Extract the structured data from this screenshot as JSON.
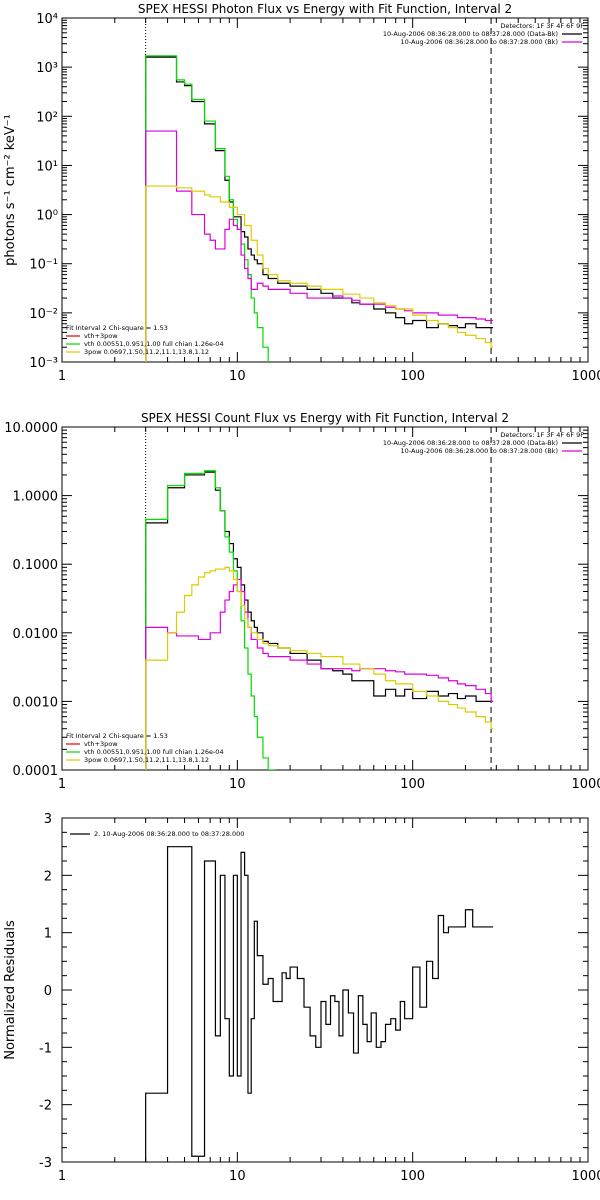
{
  "chart_data": [
    {
      "type": "line",
      "title": "SPEX HESSI Photon Flux vs Energy with Fit Function, Interval 2",
      "ylabel": "photons s⁻¹ cm⁻² keV⁻¹",
      "xlabel": "",
      "xscale": "log",
      "yscale": "log",
      "xlim": [
        1,
        1000
      ],
      "ylim": [
        0.001,
        10000
      ],
      "x_tick_labels": [
        "1",
        "10",
        "100",
        "1000"
      ],
      "y_tick_labels": [
        "10⁻³",
        "10⁻²",
        "10⁻¹",
        "10⁰",
        "10¹",
        "10²",
        "10³",
        "10⁴"
      ],
      "vlines": [
        {
          "x": 3,
          "style": "dotted"
        },
        {
          "x": 280,
          "style": "dashed"
        }
      ],
      "legend_top": [
        "Detectors: 1F 3F 4F 6F 9F",
        "10-Aug-2006 08:36:28.000 to 08:37:28.000 (Data-Bk)",
        "10-Aug-2006 08:36:28.000 to 08:37:28.000 (Bk)"
      ],
      "legend_bottom": [
        "Fit Interval 2   Chi-square = 1.53",
        "vth+3pow",
        "vth 0.00551,0.951,1.00  full chian 1.26e-04",
        "3pow 0.0697,1.50,11.2,11.1,13.8,1.12"
      ],
      "series": [
        {
          "color": "#000000",
          "x": [
            3,
            3.5,
            4,
            4.5,
            5,
            5.5,
            6,
            6.5,
            7,
            7.5,
            8,
            8.5,
            9,
            9.5,
            10,
            10.5,
            11,
            11.5,
            12,
            12.5,
            13,
            14,
            15,
            17,
            20,
            25,
            30,
            35,
            40,
            45,
            50,
            60,
            70,
            80,
            90,
            100,
            120,
            140,
            160,
            180,
            200,
            230,
            260,
            280
          ],
          "y": [
            1600,
            1600,
            1600,
            500,
            420,
            200,
            200,
            70,
            70,
            20,
            20,
            5,
            1.8,
            0.9,
            0.9,
            0.45,
            0.35,
            0.2,
            0.15,
            0.12,
            0.1,
            0.06,
            0.05,
            0.04,
            0.035,
            0.03,
            0.025,
            0.02,
            0.02,
            0.016,
            0.015,
            0.012,
            0.01,
            0.008,
            0.006,
            0.007,
            0.005,
            0.006,
            0.0055,
            0.005,
            0.006,
            0.005,
            0.005,
            0.005
          ]
        },
        {
          "color": "#00dd00",
          "x": [
            3,
            3.5,
            4,
            4.5,
            5,
            5.5,
            6,
            6.5,
            7,
            7.5,
            8,
            8.5,
            9,
            9.5,
            10,
            10.5,
            11,
            11.5,
            12,
            12.5,
            13,
            14,
            15
          ],
          "y": [
            1700,
            1700,
            1700,
            550,
            450,
            220,
            220,
            80,
            80,
            22,
            22,
            6,
            2,
            0.8,
            0.5,
            0.25,
            0.12,
            0.06,
            0.02,
            0.01,
            0.005,
            0.002,
            0.0008
          ]
        },
        {
          "color": "#dd00dd",
          "x": [
            3,
            3.5,
            4,
            4.5,
            5,
            5.5,
            6,
            6.5,
            7,
            7.5,
            8,
            8.5,
            9,
            9.5,
            10,
            10.5,
            11,
            11.5,
            12,
            13,
            14,
            15,
            17,
            20,
            25,
            30,
            35,
            40,
            45,
            50,
            60,
            70,
            80,
            90,
            100,
            120,
            140,
            160,
            180,
            200,
            230,
            260,
            280
          ],
          "y": [
            50,
            50,
            50,
            3,
            3,
            1,
            1,
            0.4,
            0.3,
            0.2,
            0.2,
            0.5,
            0.8,
            0.6,
            0.5,
            0.15,
            0.08,
            0.05,
            0.03,
            0.04,
            0.035,
            0.03,
            0.03,
            0.025,
            0.02,
            0.02,
            0.022,
            0.02,
            0.018,
            0.015,
            0.015,
            0.013,
            0.012,
            0.011,
            0.01,
            0.01,
            0.009,
            0.009,
            0.008,
            0.008,
            0.0075,
            0.007,
            0.007
          ]
        },
        {
          "color": "#ddcc00",
          "x": [
            3,
            3.5,
            4,
            4.5,
            5,
            5.5,
            6,
            6.5,
            7,
            8,
            9,
            10,
            11,
            12,
            13,
            14,
            15,
            17,
            20,
            25,
            30,
            40,
            50,
            60,
            70,
            80,
            100,
            120,
            140,
            160,
            180,
            200,
            230,
            260,
            280
          ],
          "y": [
            3.8,
            3.8,
            3.8,
            3.5,
            3.5,
            3,
            3,
            2.5,
            2.3,
            1.8,
            1.4,
            1.0,
            0.6,
            0.3,
            0.15,
            0.08,
            0.06,
            0.045,
            0.04,
            0.035,
            0.03,
            0.024,
            0.02,
            0.016,
            0.014,
            0.012,
            0.009,
            0.007,
            0.006,
            0.005,
            0.004,
            0.0035,
            0.003,
            0.0025,
            0.002
          ]
        }
      ]
    },
    {
      "type": "line",
      "title": "SPEX HESSI Count Flux vs Energy with Fit Function, Interval 2",
      "ylabel": "",
      "xlabel": "",
      "xscale": "log",
      "yscale": "log",
      "xlim": [
        1,
        1000
      ],
      "ylim": [
        0.0001,
        10
      ],
      "x_tick_labels": [
        "1",
        "10",
        "100",
        "1000"
      ],
      "y_tick_labels": [
        "0.0001",
        "0.0010",
        "0.0100",
        "0.1000",
        "1.0000",
        "10.0000"
      ],
      "vlines": [
        {
          "x": 3,
          "style": "dotted"
        },
        {
          "x": 280,
          "style": "dashed"
        }
      ],
      "legend_top": [
        "Detectors: 1F 3F 4F 6F 9F",
        "10-Aug-2006 08:36:28.000 to 08:37:28.000 (Data-Bk)",
        "10-Aug-2006 08:36:28.000 to 08:37:28.000 (Bk)"
      ],
      "legend_bottom": [
        "Fit Interval 2   Chi-square = 1.53",
        "vth+3pow",
        "vth 0.00551,0.951,1.00  full chian 1.26e-04",
        "3pow 0.0697,1.50,11.2,11.1,13.8,1.12"
      ],
      "series": [
        {
          "color": "#000000",
          "x": [
            3,
            3.5,
            4,
            4.5,
            5,
            5.5,
            6,
            6.5,
            7,
            7.5,
            8,
            8.5,
            9,
            9.5,
            10,
            10.5,
            11,
            11.5,
            12,
            12.5,
            13,
            14,
            15,
            17,
            20,
            25,
            30,
            35,
            40,
            45,
            50,
            60,
            70,
            80,
            90,
            100,
            120,
            140,
            160,
            180,
            200,
            230,
            260,
            280
          ],
          "y": [
            0.4,
            0.4,
            1.3,
            1.3,
            2.0,
            2.0,
            2.0,
            2.2,
            2.2,
            1.2,
            0.6,
            0.3,
            0.2,
            0.12,
            0.09,
            0.05,
            0.03,
            0.02,
            0.015,
            0.012,
            0.01,
            0.0075,
            0.007,
            0.006,
            0.005,
            0.004,
            0.003,
            0.0028,
            0.0025,
            0.002,
            0.002,
            0.0012,
            0.0015,
            0.0012,
            0.0015,
            0.0011,
            0.0014,
            0.0012,
            0.0013,
            0.0011,
            0.0012,
            0.001,
            0.001,
            0.001
          ]
        },
        {
          "color": "#00dd00",
          "x": [
            3,
            3.5,
            4,
            4.5,
            5,
            5.5,
            6,
            6.5,
            7,
            7.5,
            8,
            8.5,
            9,
            9.5,
            10,
            10.5,
            11,
            11.5,
            12,
            12.5,
            13,
            14,
            15,
            16
          ],
          "y": [
            0.45,
            0.45,
            1.4,
            1.4,
            2.1,
            2.1,
            2.1,
            2.3,
            2.3,
            1.3,
            0.6,
            0.25,
            0.15,
            0.08,
            0.04,
            0.015,
            0.006,
            0.0025,
            0.0012,
            0.0006,
            0.0003,
            0.00015,
            0.0001,
            0.0001
          ]
        },
        {
          "color": "#dd00dd",
          "x": [
            3,
            3.5,
            4,
            4.5,
            5,
            6,
            7,
            8,
            8.5,
            9,
            9.5,
            10,
            10.5,
            11,
            11.5,
            12,
            13,
            14,
            15,
            17,
            20,
            25,
            30,
            35,
            40,
            45,
            50,
            60,
            70,
            80,
            90,
            100,
            120,
            140,
            160,
            180,
            200,
            230,
            260,
            280
          ],
          "y": [
            0.012,
            0.012,
            0.01,
            0.009,
            0.009,
            0.008,
            0.01,
            0.02,
            0.03,
            0.04,
            0.05,
            0.06,
            0.04,
            0.02,
            0.012,
            0.008,
            0.006,
            0.005,
            0.0045,
            0.0045,
            0.004,
            0.0035,
            0.003,
            0.003,
            0.003,
            0.0028,
            0.003,
            0.003,
            0.0028,
            0.0027,
            0.0025,
            0.0025,
            0.0024,
            0.0022,
            0.002,
            0.0018,
            0.0017,
            0.0015,
            0.0013,
            0.001
          ]
        },
        {
          "color": "#ddcc00",
          "x": [
            3,
            3.5,
            4,
            4.5,
            5,
            5.5,
            6,
            6.5,
            7,
            7.5,
            8,
            8.5,
            9,
            9.5,
            10,
            10.5,
            11,
            11.5,
            12,
            13,
            14,
            15,
            17,
            20,
            25,
            30,
            40,
            50,
            60,
            70,
            80,
            100,
            120,
            140,
            160,
            180,
            200,
            230,
            260,
            280
          ],
          "y": [
            0.004,
            0.004,
            0.01,
            0.02,
            0.035,
            0.05,
            0.065,
            0.075,
            0.08,
            0.085,
            0.085,
            0.09,
            0.08,
            0.06,
            0.04,
            0.025,
            0.016,
            0.012,
            0.01,
            0.008,
            0.007,
            0.0065,
            0.006,
            0.0055,
            0.005,
            0.0045,
            0.0035,
            0.003,
            0.0025,
            0.002,
            0.0018,
            0.0014,
            0.0012,
            0.001,
            0.0009,
            0.0008,
            0.0007,
            0.0006,
            0.0005,
            0.0004
          ]
        }
      ]
    },
    {
      "type": "line",
      "title": "",
      "ylabel": "Normalized Residuals",
      "xlabel": "",
      "xscale": "log",
      "yscale": "linear",
      "xlim": [
        1,
        1000
      ],
      "ylim": [
        -3,
        3
      ],
      "x_tick_labels": [
        "1",
        "10",
        "100",
        "1000"
      ],
      "y_tick_labels": [
        "-3",
        "-2",
        "-1",
        "0",
        "1",
        "2",
        "3"
      ],
      "vlines": [],
      "legend_top": [
        "2. 10-Aug-2006 08:36:28.000 to 08:37:28.000"
      ],
      "legend_bottom": [],
      "series": [
        {
          "color": "#000000",
          "x": [
            3,
            4,
            4.5,
            5,
            5.5,
            6,
            6.5,
            7,
            7.5,
            8,
            8.5,
            9,
            9.5,
            10,
            10.5,
            11,
            11.5,
            12,
            12.5,
            13,
            14,
            15,
            16,
            17,
            18,
            19,
            20,
            22,
            24,
            26,
            28,
            30,
            32,
            34,
            36,
            38,
            40,
            43,
            46,
            49,
            52,
            55,
            58,
            62,
            66,
            70,
            75,
            80,
            85,
            90,
            100,
            110,
            120,
            130,
            140,
            150,
            160,
            180,
            200,
            220,
            240,
            260,
            280
          ],
          "y": [
            -1.8,
            2.5,
            2.5,
            2.5,
            -2.9,
            -2.9,
            2.25,
            2.25,
            -0.8,
            2.0,
            -0.5,
            -1.5,
            2.0,
            -1.5,
            2.4,
            2.0,
            -1.8,
            -0.5,
            1.2,
            0.6,
            0.1,
            0.2,
            -0.2,
            -0.2,
            0.3,
            0.2,
            0.4,
            0.2,
            -0.3,
            -0.8,
            -1.0,
            -0.2,
            -0.6,
            -0.1,
            -0.2,
            -0.8,
            0.0,
            -0.4,
            -1.1,
            -0.1,
            -0.6,
            -0.9,
            -0.4,
            -1.0,
            -0.9,
            -0.6,
            -0.5,
            -0.7,
            -0.2,
            -0.5,
            0.4,
            -0.3,
            0.5,
            0.2,
            1.3,
            1.0,
            1.1,
            1.1,
            1.4,
            1.1,
            1.1,
            1.1,
            1.1
          ]
        }
      ]
    }
  ]
}
